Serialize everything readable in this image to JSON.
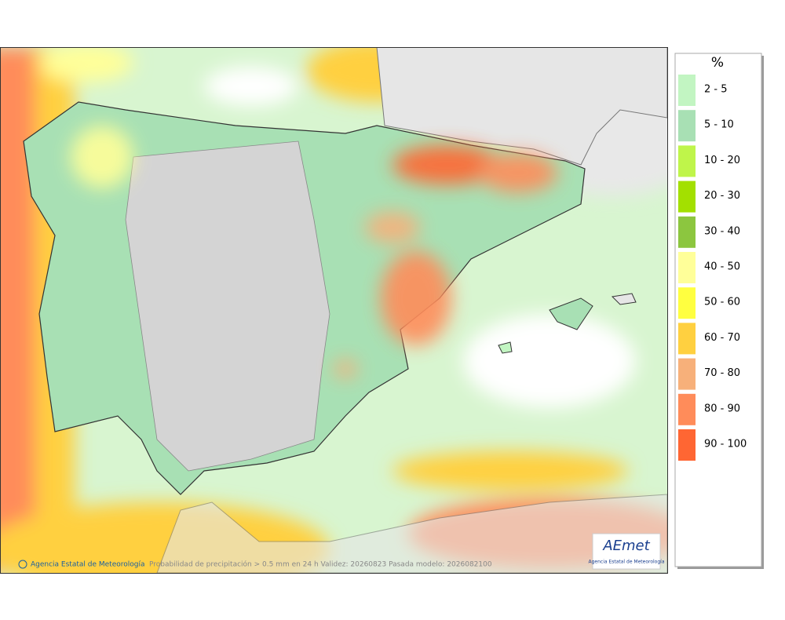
{
  "legend": {
    "title": "%",
    "items": [
      {
        "label": "2 - 5",
        "color": "#c2f5c2"
      },
      {
        "label": "5 - 10",
        "color": "#a8e0b4"
      },
      {
        "label": "10 - 20",
        "color": "#bff54a"
      },
      {
        "label": "20 - 30",
        "color": "#a3e000"
      },
      {
        "label": "30 - 40",
        "color": "#8cc63f"
      },
      {
        "label": "40 - 50",
        "color": "#ffff99"
      },
      {
        "label": "50 - 60",
        "color": "#ffff40"
      },
      {
        "label": "60 - 70",
        "color": "#ffd040"
      },
      {
        "label": "70 - 80",
        "color": "#f7b07a"
      },
      {
        "label": "80 - 90",
        "color": "#ff8c5a"
      },
      {
        "label": "90 - 100",
        "color": "#ff6633"
      }
    ]
  },
  "footer": {
    "credit": "Agencia Estatal de Meteorología",
    "caption": "Probabilidad de precipitación > 0.5 mm en 24 h Validez: 20260823 Pasada modelo: 2026082100"
  },
  "logo": {
    "name": "AEmet",
    "subtitle": "Agencia Estatal de Meteorología"
  }
}
